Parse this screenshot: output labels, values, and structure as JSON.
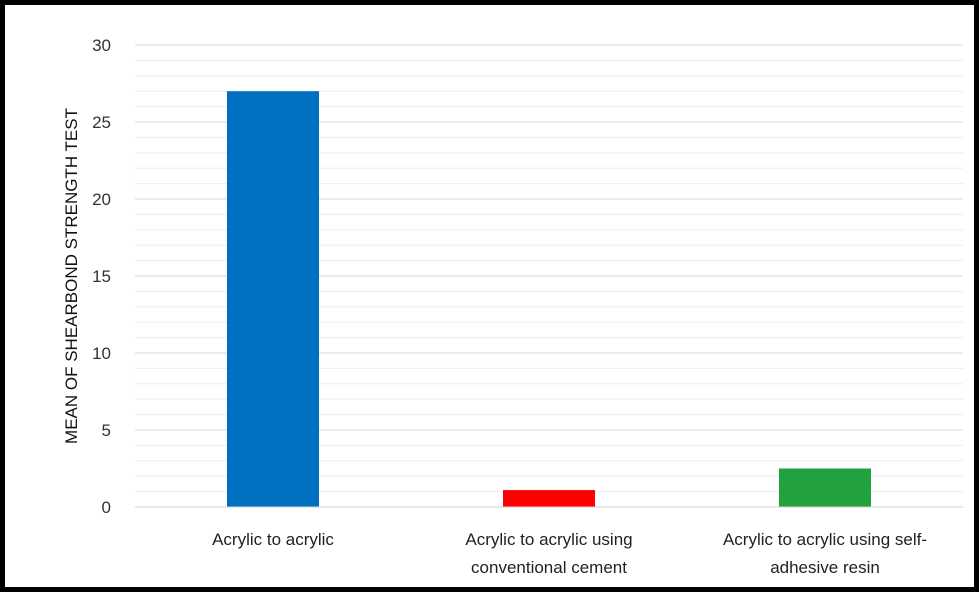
{
  "chart_data": {
    "type": "bar",
    "title": "",
    "xlabel": "",
    "ylabel": "MEAN OF SHEARBOND STRENGTH TEST",
    "categories": [
      [
        "Acrylic to acrylic"
      ],
      [
        "Acrylic to acrylic  using",
        "conventional cement"
      ],
      [
        "Acrylic to acrylic using self-",
        "adhesive resin"
      ]
    ],
    "values": [
      27.0,
      1.1,
      2.5
    ],
    "colors": [
      "#0070C0",
      "#FF0000",
      "#21A23F"
    ],
    "ylim": [
      0,
      30
    ],
    "yticks": [
      0,
      5,
      10,
      15,
      20,
      25,
      30
    ],
    "minor_grid_step": 1,
    "grid": true,
    "legend": "none"
  }
}
